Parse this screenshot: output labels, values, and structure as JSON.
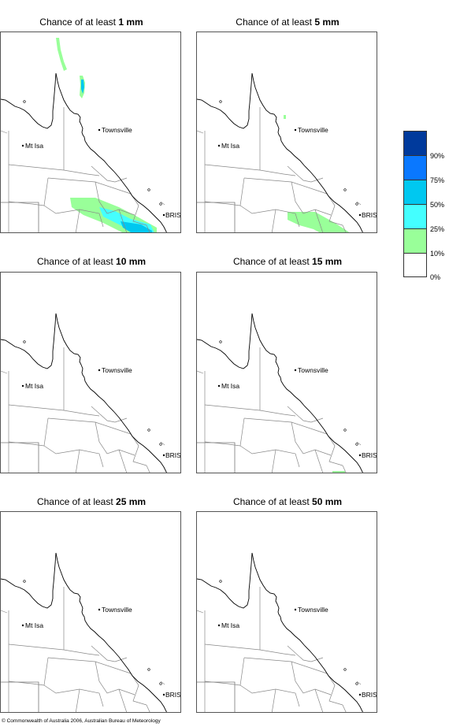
{
  "panels": [
    {
      "title_prefix": "Chance of at least ",
      "title_bold": "1 mm"
    },
    {
      "title_prefix": "Chance of at least ",
      "title_bold": "5 mm"
    },
    {
      "title_prefix": "Chance of at least ",
      "title_bold": "10 mm"
    },
    {
      "title_prefix": "Chance of at least ",
      "title_bold": "15 mm"
    },
    {
      "title_prefix": "Chance of at least ",
      "title_bold": "25 mm"
    },
    {
      "title_prefix": "Chance of at least ",
      "title_bold": "50 mm"
    }
  ],
  "places": {
    "townsville": "Townsville",
    "mt_isa": "Mt Isa",
    "brisbane": "BRIS"
  },
  "legend": {
    "levels": [
      {
        "label": "90%",
        "color": "#003a9c"
      },
      {
        "label": "75%",
        "color": "#0a78ff"
      },
      {
        "label": "50%",
        "color": "#00c8f0"
      },
      {
        "label": "25%",
        "color": "#44ffff"
      },
      {
        "label": "10%",
        "color": "#99ff99"
      },
      {
        "label": "0%",
        "color": "#ffffff"
      }
    ]
  },
  "colors": {
    "border": "#888888",
    "coast": "#000000"
  },
  "copyright": "© Commonwealth of Australia 2006, Australian Bureau of Meteorology"
}
